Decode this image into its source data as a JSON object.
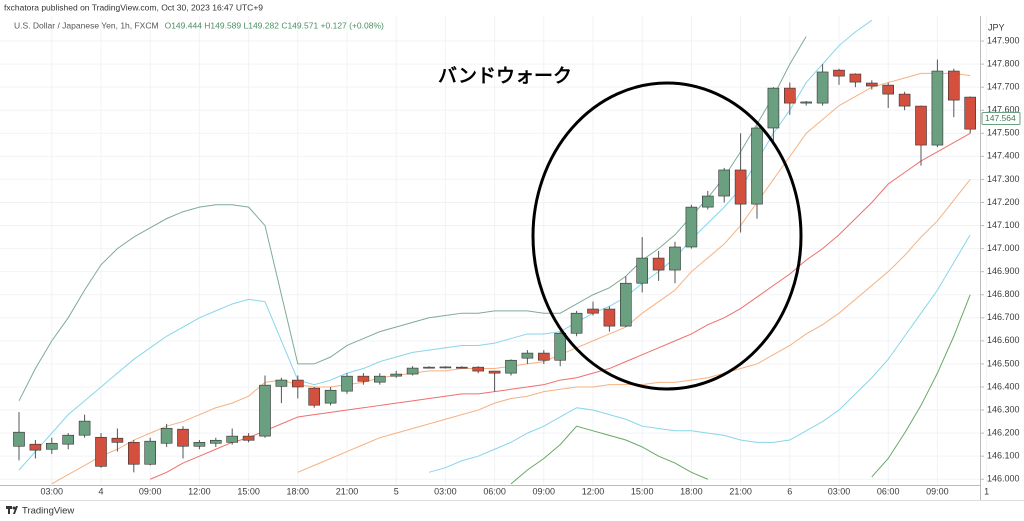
{
  "header": {
    "publisher": "fxchatora published on TradingView.com, Oct 30, 2023 16:47 UTC+9",
    "brand": "TradingView"
  },
  "chart_data": {
    "type": "candlestick",
    "title": "U.S. Dollar / Japanese Yen, 1h, FXCM",
    "ohlc_legend": "O149.444 H149.589 L149.282 C149.571 +0.127 (+0.08%)",
    "annotation": "バンドウォーク",
    "y_axis_label": "JPY",
    "last_price": 147.564,
    "grid": true,
    "up_color": "#6a9f80",
    "down_color": "#d4503e",
    "categories": [
      null,
      null,
      "03:00",
      null,
      null,
      "4",
      null,
      null,
      "09:00",
      null,
      null,
      "12:00",
      null,
      null,
      "15:00",
      null,
      null,
      "18:00",
      null,
      null,
      "21:00",
      null,
      null,
      "5",
      null,
      null,
      "03:00",
      null,
      null,
      "06:00",
      null,
      null,
      "09:00",
      null,
      null,
      "12:00",
      null,
      null,
      "15:00",
      null,
      null,
      "18:00",
      null,
      null,
      "21:00",
      null,
      null,
      "6",
      null,
      null,
      "03:00",
      null,
      null,
      "06:00",
      null,
      null,
      "09:00",
      null,
      null,
      "1"
    ],
    "open": [
      146.143,
      146.152,
      146.13,
      146.152,
      146.191,
      146.182,
      146.178,
      146.16,
      146.065,
      146.156,
      146.217,
      146.143,
      146.156,
      146.16,
      146.187,
      146.187,
      146.403,
      146.43,
      146.395,
      146.33,
      146.382,
      146.447,
      146.421,
      146.447,
      146.456,
      146.482,
      146.486,
      146.486,
      146.486,
      146.469,
      146.46,
      146.525,
      146.547,
      146.516,
      146.633,
      146.738,
      146.738,
      146.664,
      146.85,
      146.959,
      146.907,
      147.007,
      147.18,
      147.228,
      147.341,
      147.193,
      147.523,
      147.696,
      147.631,
      147.631,
      147.774,
      147.757,
      147.718,
      147.709,
      147.67,
      147.618,
      147.449,
      147.77,
      147.657,
      null
    ],
    "high": [
      146.291,
      146.17,
      146.18,
      146.2,
      146.28,
      146.2,
      146.22,
      146.17,
      146.18,
      146.24,
      146.23,
      146.17,
      146.18,
      146.22,
      146.2,
      146.45,
      146.44,
      146.45,
      146.4,
      146.4,
      146.46,
      146.46,
      146.46,
      146.47,
      146.49,
      146.49,
      146.49,
      146.49,
      146.49,
      146.47,
      146.52,
      146.56,
      146.56,
      146.64,
      146.73,
      146.77,
      146.75,
      146.88,
      147.05,
      146.99,
      147.03,
      147.19,
      147.25,
      147.35,
      147.5,
      147.53,
      147.7,
      147.72,
      147.64,
      147.8,
      147.78,
      147.76,
      147.73,
      147.72,
      147.68,
      147.62,
      147.82,
      147.78,
      147.66,
      null
    ],
    "low": [
      146.082,
      146.09,
      146.11,
      146.13,
      146.18,
      146.05,
      146.12,
      146.03,
      146.06,
      146.14,
      146.09,
      146.13,
      146.14,
      146.15,
      146.16,
      146.18,
      146.33,
      146.35,
      146.31,
      146.32,
      146.37,
      146.41,
      146.41,
      146.44,
      146.45,
      146.48,
      146.48,
      146.48,
      146.46,
      146.38,
      146.45,
      146.5,
      146.5,
      146.49,
      146.62,
      146.71,
      146.64,
      146.66,
      146.81,
      146.86,
      146.85,
      147.0,
      147.17,
      147.2,
      147.07,
      147.13,
      147.46,
      147.58,
      147.62,
      147.62,
      147.71,
      147.7,
      147.69,
      147.61,
      147.6,
      147.36,
      147.44,
      147.57,
      147.5,
      null
    ],
    "close": [
      146.204,
      146.126,
      146.156,
      146.191,
      146.252,
      146.056,
      146.16,
      146.065,
      146.165,
      146.221,
      146.143,
      146.16,
      146.169,
      146.187,
      146.169,
      146.408,
      146.43,
      146.4,
      146.321,
      146.386,
      146.447,
      146.425,
      146.447,
      146.456,
      146.482,
      146.486,
      146.487,
      146.482,
      146.469,
      146.46,
      146.516,
      146.547,
      146.516,
      146.633,
      146.72,
      146.72,
      146.664,
      146.85,
      146.959,
      146.907,
      147.007,
      147.18,
      147.228,
      147.341,
      147.193,
      147.523,
      147.696,
      147.631,
      147.636,
      147.766,
      147.748,
      147.722,
      147.705,
      147.67,
      147.618,
      147.449,
      147.77,
      147.644,
      147.518,
      null
    ],
    "bands": [
      {
        "color": "#7fab96",
        "values": [
          146.34,
          146.48,
          146.6,
          146.7,
          146.82,
          146.93,
          147.0,
          147.05,
          147.09,
          147.13,
          147.16,
          147.18,
          147.19,
          147.19,
          147.18,
          147.1,
          146.8,
          146.5,
          146.5,
          146.53,
          146.58,
          146.61,
          146.64,
          146.66,
          146.68,
          146.7,
          146.71,
          146.72,
          146.72,
          146.73,
          146.73,
          146.73,
          146.72,
          146.72,
          146.76,
          146.8,
          146.83,
          146.88,
          146.95,
          147.0,
          147.06,
          147.14,
          147.22,
          147.31,
          147.42,
          147.54,
          147.66,
          147.8,
          147.92,
          null,
          null,
          null,
          null,
          null,
          null,
          null,
          null,
          null,
          null,
          null
        ]
      },
      {
        "color": "#86d6ea",
        "values": [
          146.04,
          146.12,
          146.2,
          146.28,
          146.34,
          146.4,
          146.46,
          146.52,
          146.57,
          146.62,
          146.66,
          146.7,
          146.73,
          146.76,
          146.78,
          146.77,
          146.6,
          146.43,
          146.41,
          146.43,
          146.46,
          146.48,
          146.51,
          146.53,
          146.55,
          146.56,
          146.57,
          146.58,
          146.58,
          146.59,
          146.61,
          146.63,
          146.63,
          146.64,
          146.68,
          146.72,
          146.75,
          146.79,
          146.85,
          146.9,
          146.96,
          147.04,
          147.11,
          147.18,
          147.26,
          147.38,
          147.5,
          147.6,
          147.72,
          147.8,
          147.88,
          147.94,
          147.99,
          null,
          null,
          null,
          null,
          null,
          null,
          null
        ]
      },
      {
        "color": "#f7b080",
        "values": [
          null,
          null,
          145.98,
          146.02,
          146.06,
          146.1,
          146.13,
          146.17,
          146.2,
          146.23,
          146.25,
          146.28,
          146.31,
          146.33,
          146.36,
          146.42,
          146.43,
          146.41,
          146.4,
          146.4,
          146.41,
          146.42,
          146.44,
          146.45,
          146.46,
          146.47,
          146.47,
          146.48,
          146.48,
          146.48,
          146.49,
          146.5,
          146.51,
          146.54,
          146.57,
          146.6,
          146.63,
          146.66,
          146.72,
          146.77,
          146.82,
          146.9,
          146.96,
          147.02,
          147.1,
          147.2,
          147.3,
          147.4,
          147.5,
          147.56,
          147.62,
          147.66,
          147.7,
          147.72,
          147.74,
          147.76,
          147.76,
          147.76,
          147.75,
          null
        ]
      },
      {
        "color": "#ef6f6c",
        "values": [
          null,
          null,
          null,
          null,
          null,
          null,
          null,
          null,
          146.0,
          146.03,
          146.07,
          146.1,
          146.13,
          146.16,
          146.18,
          146.21,
          146.24,
          146.27,
          146.28,
          146.29,
          146.3,
          146.31,
          146.32,
          146.33,
          146.34,
          146.35,
          146.36,
          146.37,
          146.37,
          146.38,
          146.39,
          146.4,
          146.41,
          146.43,
          146.44,
          146.46,
          146.48,
          146.51,
          146.54,
          146.57,
          146.6,
          146.63,
          146.67,
          146.7,
          146.74,
          146.79,
          146.84,
          146.89,
          146.95,
          147.0,
          147.06,
          147.13,
          147.2,
          147.28,
          147.33,
          147.38,
          147.42,
          147.46,
          147.5,
          null
        ]
      },
      {
        "color": "#f7b080",
        "values": [
          null,
          null,
          null,
          null,
          null,
          null,
          null,
          null,
          null,
          null,
          null,
          null,
          null,
          null,
          null,
          null,
          null,
          146.03,
          146.06,
          146.09,
          146.12,
          146.15,
          146.18,
          146.2,
          146.22,
          146.24,
          146.26,
          146.28,
          146.3,
          146.33,
          146.35,
          146.36,
          146.38,
          146.39,
          146.4,
          146.4,
          146.41,
          146.41,
          146.41,
          146.42,
          146.42,
          146.43,
          146.44,
          146.46,
          146.48,
          146.5,
          146.54,
          146.58,
          146.63,
          146.67,
          146.72,
          146.78,
          146.84,
          146.9,
          146.97,
          147.05,
          147.12,
          147.21,
          147.3,
          null
        ]
      },
      {
        "color": "#86d6ea",
        "values": [
          null,
          null,
          null,
          null,
          null,
          null,
          null,
          null,
          null,
          null,
          null,
          null,
          null,
          null,
          null,
          null,
          null,
          null,
          null,
          null,
          null,
          null,
          null,
          null,
          null,
          146.03,
          146.05,
          146.08,
          146.1,
          146.13,
          146.16,
          146.2,
          146.23,
          146.27,
          146.31,
          146.3,
          146.28,
          146.26,
          146.23,
          146.22,
          146.21,
          146.21,
          146.2,
          146.19,
          146.17,
          146.16,
          146.16,
          146.17,
          146.21,
          146.25,
          146.3,
          146.37,
          146.44,
          146.52,
          146.62,
          146.72,
          146.82,
          146.94,
          147.06,
          null
        ]
      },
      {
        "color": "#67a867",
        "values": [
          null,
          null,
          null,
          null,
          null,
          null,
          null,
          null,
          null,
          null,
          null,
          null,
          null,
          null,
          null,
          null,
          null,
          null,
          null,
          null,
          null,
          null,
          null,
          null,
          null,
          null,
          null,
          null,
          null,
          null,
          145.98,
          146.04,
          146.09,
          146.15,
          146.23,
          146.21,
          146.19,
          146.17,
          146.14,
          146.1,
          146.07,
          146.03,
          146.0,
          null,
          null,
          null,
          null,
          null,
          null,
          null,
          null,
          null,
          146.01,
          146.09,
          146.2,
          146.32,
          146.46,
          146.62,
          146.8,
          null
        ]
      }
    ],
    "ylim": [
      145.975,
      148.0
    ],
    "yticks": [
      {
        "value": 146.0,
        "label": "146.000"
      },
      {
        "value": 146.1,
        "label": "146.100"
      },
      {
        "value": 146.2,
        "label": "146.200"
      },
      {
        "value": 146.3,
        "label": "146.300"
      },
      {
        "value": 146.4,
        "label": "146.400"
      },
      {
        "value": 146.5,
        "label": "146.500"
      },
      {
        "value": 146.6,
        "label": "146.600"
      },
      {
        "value": 146.7,
        "label": "146.700"
      },
      {
        "value": 146.8,
        "label": "146.800"
      },
      {
        "value": 146.9,
        "label": "146.900"
      },
      {
        "value": 147.0,
        "label": "147.000"
      },
      {
        "value": 147.1,
        "label": "147.100"
      },
      {
        "value": 147.2,
        "label": "147.200"
      },
      {
        "value": 147.3,
        "label": "147.300"
      },
      {
        "value": 147.4,
        "label": "147.400"
      },
      {
        "value": 147.5,
        "label": "147.500"
      },
      {
        "value": 147.6,
        "label": "147.600"
      },
      {
        "value": 147.7,
        "label": "147.700"
      },
      {
        "value": 147.8,
        "label": "147.800"
      },
      {
        "value": 147.9,
        "label": "147.900"
      }
    ]
  }
}
